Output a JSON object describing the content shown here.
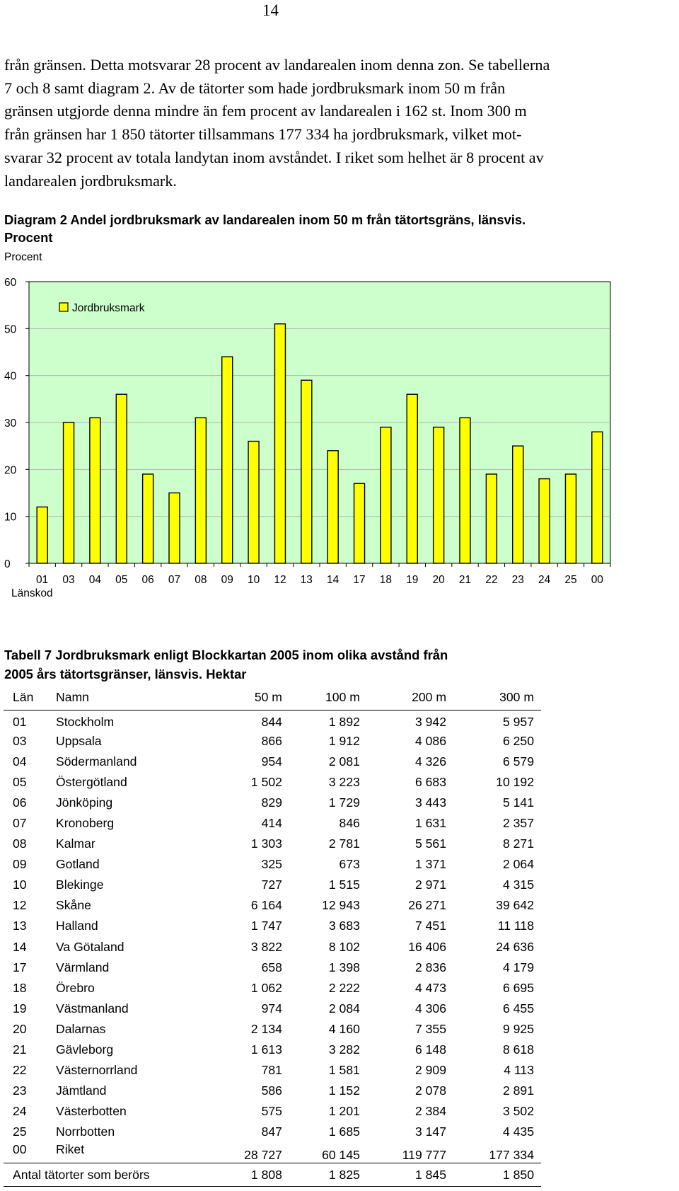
{
  "page_number": "14",
  "body_lines": [
    "från gränsen. Detta motsvarar 28 procent av landarealen inom denna zon. Se tabellerna",
    "7 och 8 samt diagram 2. Av de tätorter som hade jordbruksmark inom 50 m från",
    "gränsen utgjorde denna mindre än fem procent av landarealen i 162 st. Inom 300 m",
    "från gränsen har 1 850 tätorter tillsammans 177 334 ha jordbruksmark, vilket mot-",
    "svarar 32 procent av totala landytan inom avståndet. I riket som helhet är 8 procent av",
    "landarealen jordbruksmark."
  ],
  "diagram_title_lines": [
    "Diagram 2 Andel jordbruksmark av landarealen inom 50 m från tätortsgräns, länsvis.",
    "Procent"
  ],
  "chart_data": {
    "type": "bar",
    "ylabel": "Procent",
    "xlabel": "Länskod",
    "ylim": [
      0,
      60
    ],
    "yticks": [
      "0",
      "10",
      "20",
      "30",
      "40",
      "50",
      "60"
    ],
    "grid": true,
    "legend_position": "top-left",
    "categories": [
      "01",
      "03",
      "04",
      "05",
      "06",
      "07",
      "08",
      "09",
      "10",
      "12",
      "13",
      "14",
      "17",
      "18",
      "19",
      "20",
      "21",
      "22",
      "23",
      "24",
      "25",
      "00"
    ],
    "series": [
      {
        "name": "Jordbruksmark",
        "values": [
          12,
          30,
          31,
          36,
          19,
          15,
          31,
          44,
          26,
          51,
          39,
          24,
          17,
          29,
          36,
          29,
          31,
          19,
          25,
          18,
          19,
          28
        ]
      }
    ],
    "colors": {
      "plot_bg": "#ccffcc",
      "bar_fill": "#ffff00",
      "bar_stroke": "#000000",
      "grid": "#b3b3b3"
    }
  },
  "table": {
    "title_lines": [
      "Tabell 7 Jordbruksmark enligt Blockkartan 2005 inom olika avstånd från",
      "2005 års tätortsgränser, länsvis. Hektar"
    ],
    "headers": {
      "code": "Län",
      "name": "Namn",
      "d50": "50 m",
      "d100": "100 m",
      "d200": "200 m",
      "d300": "300 m"
    },
    "rows": [
      {
        "code": "01",
        "name": "Stockholm",
        "d50": "844",
        "d100": "1 892",
        "d200": "3 942",
        "d300": "5 957"
      },
      {
        "code": "03",
        "name": "Uppsala",
        "d50": "866",
        "d100": "1 912",
        "d200": "4 086",
        "d300": "6 250"
      },
      {
        "code": "04",
        "name": "Södermanland",
        "d50": "954",
        "d100": "2 081",
        "d200": "4 326",
        "d300": "6 579"
      },
      {
        "code": "05",
        "name": "Östergötland",
        "d50": "1 502",
        "d100": "3 223",
        "d200": "6 683",
        "d300": "10 192"
      },
      {
        "code": "06",
        "name": "Jönköping",
        "d50": "829",
        "d100": "1 729",
        "d200": "3 443",
        "d300": "5 141"
      },
      {
        "code": "07",
        "name": "Kronoberg",
        "d50": "414",
        "d100": "846",
        "d200": "1 631",
        "d300": "2 357"
      },
      {
        "code": "08",
        "name": "Kalmar",
        "d50": "1 303",
        "d100": "2 781",
        "d200": "5 561",
        "d300": "8 271"
      },
      {
        "code": "09",
        "name": "Gotland",
        "d50": "325",
        "d100": "673",
        "d200": "1 371",
        "d300": "2 064"
      },
      {
        "code": "10",
        "name": "Blekinge",
        "d50": "727",
        "d100": "1 515",
        "d200": "2 971",
        "d300": "4 315"
      },
      {
        "code": "12",
        "name": "Skåne",
        "d50": "6 164",
        "d100": "12 943",
        "d200": "26 271",
        "d300": "39 642"
      },
      {
        "code": "13",
        "name": "Halland",
        "d50": "1 747",
        "d100": "3 683",
        "d200": "7 451",
        "d300": "11 118"
      },
      {
        "code": "14",
        "name": "Va Götaland",
        "d50": "3 822",
        "d100": "8 102",
        "d200": "16 406",
        "d300": "24 636"
      },
      {
        "code": "17",
        "name": "Värmland",
        "d50": "658",
        "d100": "1 398",
        "d200": "2 836",
        "d300": "4 179"
      },
      {
        "code": "18",
        "name": "Örebro",
        "d50": "1 062",
        "d100": "2 222",
        "d200": "4 473",
        "d300": "6 695"
      },
      {
        "code": "19",
        "name": "Västmanland",
        "d50": "974",
        "d100": "2 084",
        "d200": "4 306",
        "d300": "6 455"
      },
      {
        "code": "20",
        "name": "Dalarnas",
        "d50": "2 134",
        "d100": "4 160",
        "d200": "7 355",
        "d300": "9 925"
      },
      {
        "code": "21",
        "name": "Gävleborg",
        "d50": "1 613",
        "d100": "3 282",
        "d200": "6 148",
        "d300": "8 618"
      },
      {
        "code": "22",
        "name": "Västernorrland",
        "d50": "781",
        "d100": "1 581",
        "d200": "2 909",
        "d300": "4 113"
      },
      {
        "code": "23",
        "name": "Jämtland",
        "d50": "586",
        "d100": "1 152",
        "d200": "2 078",
        "d300": "2 891"
      },
      {
        "code": "24",
        "name": "Västerbotten",
        "d50": "575",
        "d100": "1 201",
        "d200": "2 384",
        "d300": "3 502"
      },
      {
        "code": "25",
        "name": "Norrbotten",
        "d50": "847",
        "d100": "1 685",
        "d200": "3 147",
        "d300": "4 435"
      },
      {
        "code": "00",
        "name": "Riket",
        "d50": "28 727",
        "d100": "60 145",
        "d200": "119 777",
        "d300": "177 334"
      }
    ],
    "total": {
      "label": "Antal tätorter som berörs",
      "d50": "1 808",
      "d100": "1 825",
      "d200": "1 845",
      "d300": "1 850"
    }
  }
}
